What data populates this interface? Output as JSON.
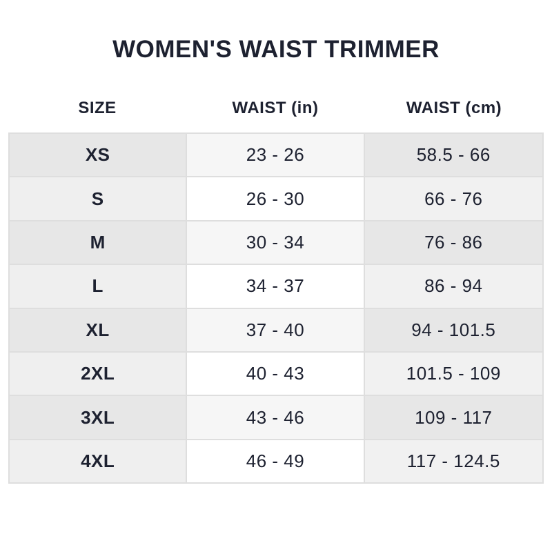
{
  "title": "WOMEN'S WAIST TRIMMER",
  "columns": [
    "SIZE",
    "WAIST (in)",
    "WAIST (cm)"
  ],
  "rows": [
    [
      "XS",
      "23 - 26",
      "58.5 - 66"
    ],
    [
      "S",
      "26 - 30",
      "66 - 76"
    ],
    [
      "M",
      "30 - 34",
      "76 - 86"
    ],
    [
      "L",
      "34 - 37",
      "86 - 94"
    ],
    [
      "XL",
      "37 - 40",
      "94 - 101.5"
    ],
    [
      "2XL",
      "40 - 43",
      "101.5 - 109"
    ],
    [
      "3XL",
      "43 - 46",
      "109 - 117"
    ],
    [
      "4XL",
      "46 - 49",
      "117 - 124.5"
    ]
  ]
}
